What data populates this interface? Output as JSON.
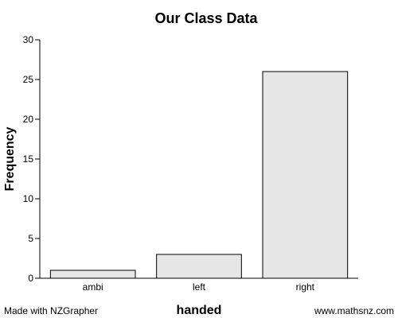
{
  "chart_data": {
    "type": "bar",
    "title": "Our Class Data",
    "xlabel": "handed",
    "ylabel": "Frequency",
    "categories": [
      "ambi",
      "left",
      "right"
    ],
    "values": [
      1,
      3,
      26
    ],
    "ylim": [
      0,
      30
    ],
    "yticks": [
      0,
      5,
      10,
      15,
      20,
      25,
      30
    ],
    "grid": false,
    "bar_fill": "#e6e6e6",
    "bar_stroke": "#000000"
  },
  "footer": {
    "left": "Made with NZGrapher",
    "right": "www.mathsnz.com"
  }
}
